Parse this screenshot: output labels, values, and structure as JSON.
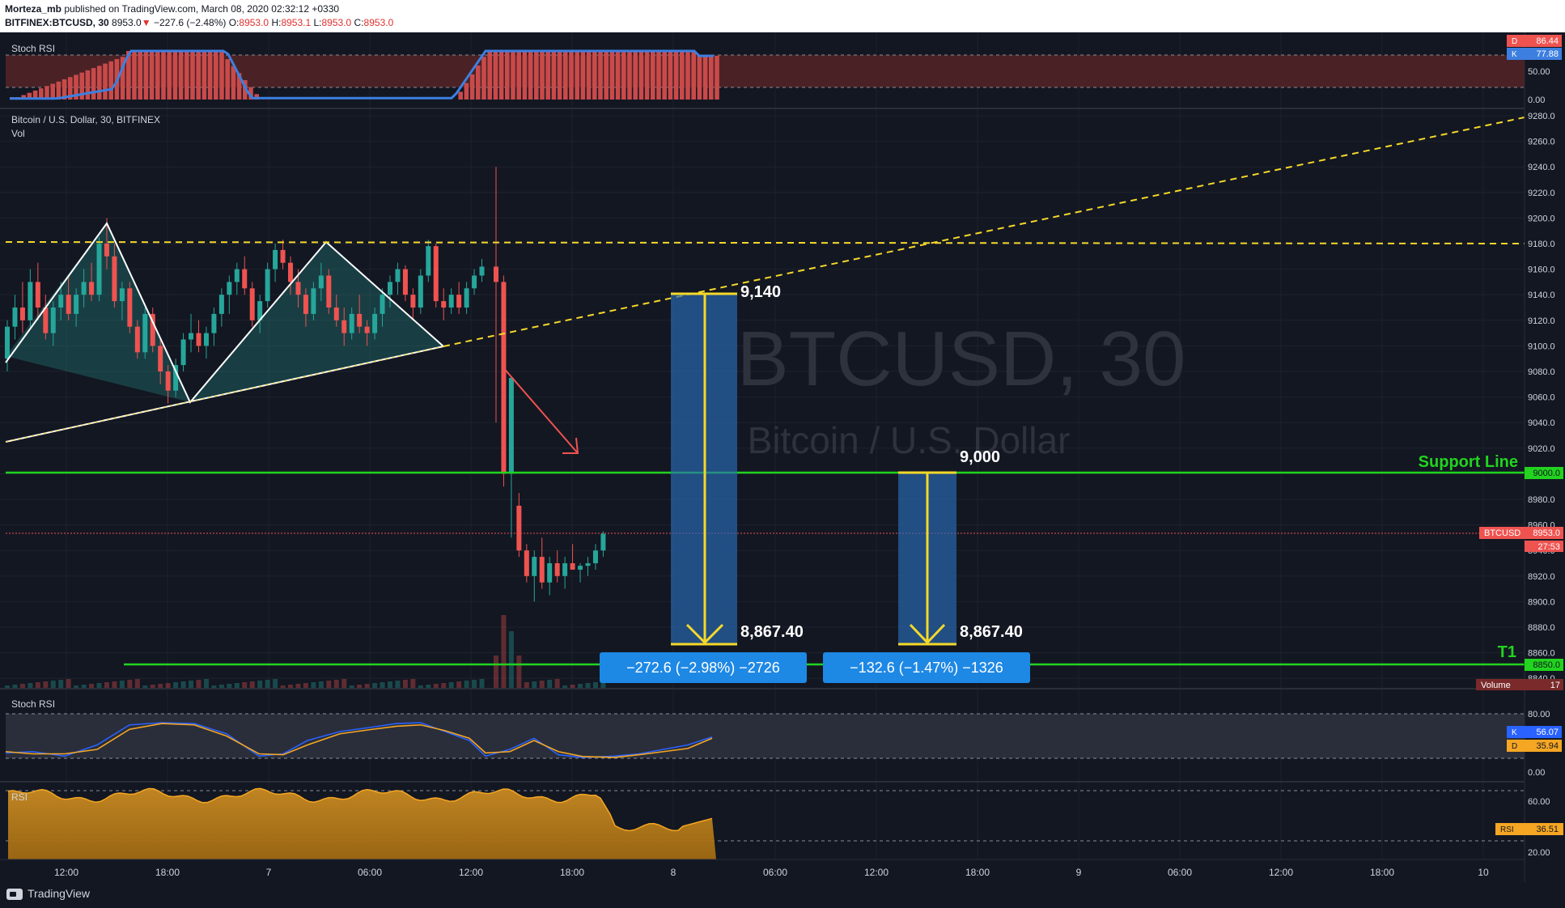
{
  "header": {
    "publisher": "Morteza_mb",
    "published_text": "published on TradingView.com, March 08, 2020 02:32:12 +0330",
    "symbol": "BITFINEX:BTCUSD, 30",
    "last": "8953.0",
    "change": "−227.6 (−2.48%)",
    "ohlc_o_label": "O:",
    "ohlc_o": "8953.0",
    "ohlc_h_label": "H:",
    "ohlc_h": "8953.1",
    "ohlc_l_label": "L:",
    "ohlc_l": "8953.0",
    "ohlc_c_label": "C:",
    "ohlc_c": "8953.0"
  },
  "footer": {
    "logo": "TradingView"
  },
  "colors": {
    "background": "#131722",
    "up": "#26a69a",
    "down": "#ef5350",
    "support": "#22d31f",
    "dashed": "#f5d82a",
    "stoch_k": "#2962ff",
    "stoch_d": "#f5a623",
    "rsi": "#f5a623",
    "box": "#2a6cb8"
  },
  "stoch_top": {
    "title": "Stoch RSI",
    "d_label": "D",
    "d_value": "86.44",
    "k_label": "K",
    "k_value": "77.88",
    "ticks": [
      "50.00",
      "0.00"
    ]
  },
  "main": {
    "title": "Bitcoin / U.S. Dollar, 30, BITFINEX",
    "vol_label": "Vol",
    "watermark_symbol": "BTCUSD, 30",
    "watermark_desc": "Bitcoin / U.S. Dollar",
    "price_ticks": [
      "9280.0",
      "9260.0",
      "9240.0",
      "9220.0",
      "9200.0",
      "9180.0",
      "9160.0",
      "9140.0",
      "9120.0",
      "9100.0",
      "9080.0",
      "9060.0",
      "9040.0",
      "9020.0",
      "8980.0",
      "8960.0",
      "8940.0",
      "8920.0",
      "8900.0",
      "8880.0",
      "8860.0",
      "8840.0"
    ],
    "support_label": "Support Line",
    "support_price": "9000.0",
    "t1_label": "T1",
    "t1_price": "8850.0",
    "current_label": "BTCUSD",
    "current_price": "8953.0",
    "countdown": "27:53",
    "volume_label": "Volume",
    "volume_value": "17",
    "level_9140": "9,140",
    "level_9000": "9,000",
    "target_1": "8,867.40",
    "target_2": "8,867.40",
    "measure_1": "−272.6 (−2.98%) −2726",
    "measure_2": "−132.6 (−1.47%) −1326"
  },
  "stoch_bottom": {
    "title": "Stoch RSI",
    "k_label": "K",
    "k_value": "56.07",
    "d_label": "D",
    "d_value": "35.94",
    "ticks": [
      "80.00",
      "0.00"
    ]
  },
  "rsi": {
    "title": "RSI",
    "label": "RSI",
    "value": "36.51",
    "ticks": [
      "60.00",
      "20.00"
    ]
  },
  "time_axis": [
    "12:00",
    "18:00",
    "7",
    "06:00",
    "12:00",
    "18:00",
    "8",
    "06:00",
    "12:00",
    "18:00",
    "9",
    "06:00",
    "12:00",
    "18:00",
    "10"
  ],
  "chart_data": {
    "type": "candlestick",
    "symbol": "BTCUSD",
    "interval": "30",
    "ylim": [
      8840,
      9285
    ],
    "ohlc": [
      [
        9090,
        9120,
        9080,
        9115
      ],
      [
        9115,
        9140,
        9105,
        9130
      ],
      [
        9130,
        9150,
        9110,
        9120
      ],
      [
        9120,
        9160,
        9115,
        9150
      ],
      [
        9150,
        9165,
        9120,
        9130
      ],
      [
        9130,
        9140,
        9105,
        9110
      ],
      [
        9110,
        9135,
        9100,
        9130
      ],
      [
        9130,
        9150,
        9120,
        9140
      ],
      [
        9140,
        9155,
        9120,
        9125
      ],
      [
        9125,
        9145,
        9115,
        9140
      ],
      [
        9140,
        9160,
        9130,
        9150
      ],
      [
        9150,
        9165,
        9135,
        9140
      ],
      [
        9140,
        9185,
        9135,
        9180
      ],
      [
        9180,
        9200,
        9160,
        9170
      ],
      [
        9170,
        9180,
        9130,
        9135
      ],
      [
        9135,
        9150,
        9120,
        9145
      ],
      [
        9145,
        9150,
        9110,
        9115
      ],
      [
        9115,
        9120,
        9090,
        9095
      ],
      [
        9095,
        9130,
        9090,
        9125
      ],
      [
        9125,
        9130,
        9095,
        9100
      ],
      [
        9100,
        9105,
        9070,
        9080
      ],
      [
        9080,
        9085,
        9055,
        9065
      ],
      [
        9065,
        9090,
        9060,
        9085
      ],
      [
        9085,
        9110,
        9080,
        9105
      ],
      [
        9105,
        9125,
        9095,
        9110
      ],
      [
        9110,
        9120,
        9095,
        9100
      ],
      [
        9100,
        9115,
        9090,
        9110
      ],
      [
        9110,
        9130,
        9100,
        9125
      ],
      [
        9125,
        9145,
        9115,
        9140
      ],
      [
        9140,
        9155,
        9125,
        9150
      ],
      [
        9150,
        9165,
        9140,
        9160
      ],
      [
        9160,
        9170,
        9140,
        9145
      ],
      [
        9145,
        9150,
        9115,
        9120
      ],
      [
        9120,
        9140,
        9110,
        9135
      ],
      [
        9135,
        9165,
        9130,
        9160
      ],
      [
        9160,
        9180,
        9150,
        9175
      ],
      [
        9175,
        9183,
        9160,
        9165
      ],
      [
        9165,
        9170,
        9140,
        9150
      ],
      [
        9150,
        9160,
        9130,
        9140
      ],
      [
        9140,
        9145,
        9115,
        9125
      ],
      [
        9125,
        9150,
        9120,
        9145
      ],
      [
        9145,
        9165,
        9135,
        9155
      ],
      [
        9155,
        9160,
        9125,
        9130
      ],
      [
        9130,
        9140,
        9115,
        9120
      ],
      [
        9120,
        9130,
        9100,
        9110
      ],
      [
        9110,
        9130,
        9105,
        9125
      ],
      [
        9125,
        9140,
        9110,
        9115
      ],
      [
        9115,
        9120,
        9100,
        9110
      ],
      [
        9110,
        9130,
        9105,
        9125
      ],
      [
        9125,
        9145,
        9115,
        9140
      ],
      [
        9140,
        9155,
        9130,
        9150
      ],
      [
        9150,
        9165,
        9140,
        9160
      ],
      [
        9160,
        9163,
        9135,
        9140
      ],
      [
        9140,
        9145,
        9120,
        9130
      ],
      [
        9130,
        9160,
        9125,
        9155
      ],
      [
        9155,
        9183,
        9150,
        9178
      ],
      [
        9178,
        9180,
        9130,
        9135
      ],
      [
        9135,
        9145,
        9120,
        9130
      ],
      [
        9130,
        9145,
        9125,
        9140
      ],
      [
        9140,
        9150,
        9125,
        9130
      ],
      [
        9130,
        9150,
        9125,
        9145
      ],
      [
        9145,
        9160,
        9140,
        9155
      ],
      [
        9155,
        9168,
        9150,
        9162
      ],
      [
        9162,
        9240,
        9040,
        9150
      ],
      [
        9150,
        9155,
        8990,
        9000
      ],
      [
        9000,
        9075,
        8950,
        9075
      ],
      [
        8975,
        8985,
        8935,
        8940
      ],
      [
        8940,
        8945,
        8915,
        8920
      ],
      [
        8920,
        8940,
        8900,
        8935
      ],
      [
        8935,
        8950,
        8910,
        8915
      ],
      [
        8915,
        8935,
        8905,
        8930
      ],
      [
        8930,
        8940,
        8915,
        8920
      ],
      [
        8920,
        8935,
        8910,
        8930
      ],
      [
        8930,
        8945,
        8925,
        8925
      ],
      [
        8925,
        8930,
        8915,
        8928
      ],
      [
        8928,
        8935,
        8920,
        8930
      ],
      [
        8930,
        8945,
        8925,
        8940
      ],
      [
        8940,
        8955,
        8935,
        8953
      ]
    ],
    "support": 9000,
    "resistance": 9180,
    "t1": 8850,
    "current": 8953.0,
    "measures": [
      {
        "from": 9140,
        "to": 8867.4,
        "change": -272.6,
        "percent": -2.98
      },
      {
        "from": 9000,
        "to": 8867.4,
        "change": -132.6,
        "percent": -1.47
      }
    ]
  }
}
